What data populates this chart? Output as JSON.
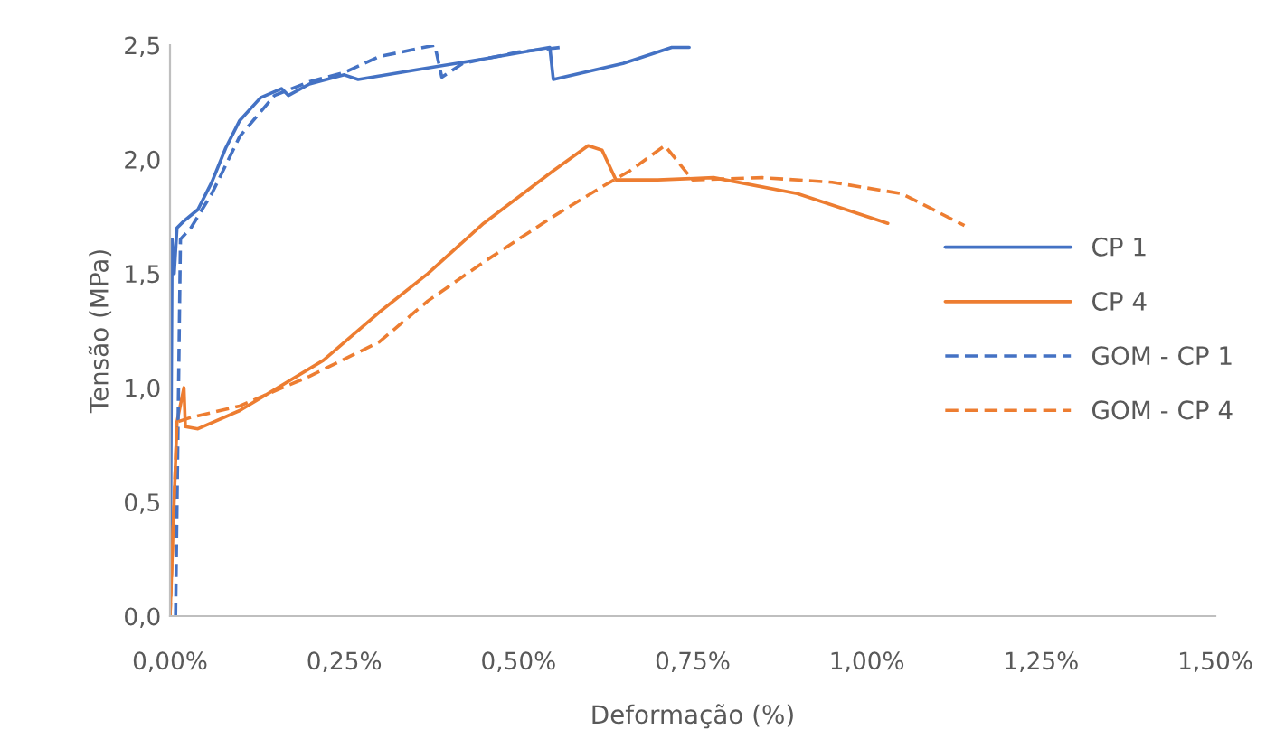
{
  "chart_data": {
    "type": "line",
    "xlabel": "Deformação (%)",
    "ylabel": "Tensão (MPa)",
    "xlim": [
      0,
      1.5
    ],
    "ylim": [
      0,
      2.5
    ],
    "xticks": [
      {
        "value": 0,
        "label": "0,00%"
      },
      {
        "value": 0.25,
        "label": "0,25%"
      },
      {
        "value": 0.5,
        "label": "0,50%"
      },
      {
        "value": 0.75,
        "label": "0,75%"
      },
      {
        "value": 1.0,
        "label": "1,00%"
      },
      {
        "value": 1.25,
        "label": "1,25%"
      },
      {
        "value": 1.5,
        "label": "1,50%"
      }
    ],
    "yticks": [
      {
        "value": 0,
        "label": "0,0"
      },
      {
        "value": 0.5,
        "label": "0,5"
      },
      {
        "value": 1.0,
        "label": "1,0"
      },
      {
        "value": 1.5,
        "label": "1,5"
      },
      {
        "value": 2.0,
        "label": "2,0"
      },
      {
        "value": 2.5,
        "label": "2,5"
      }
    ],
    "grid": false,
    "legend": "right",
    "series": [
      {
        "name": "CP 1",
        "color": "#4472c4",
        "line_style": "solid",
        "x": [
          0,
          0.003,
          0.006,
          0.01,
          0.02,
          0.04,
          0.06,
          0.08,
          0.1,
          0.13,
          0.16,
          0.17,
          0.2,
          0.25,
          0.27,
          0.35,
          0.45,
          0.545,
          0.55,
          0.65,
          0.72,
          0.745
        ],
        "values": [
          0,
          1.65,
          1.5,
          1.7,
          1.73,
          1.78,
          1.9,
          2.05,
          2.17,
          2.27,
          2.31,
          2.28,
          2.33,
          2.37,
          2.35,
          2.39,
          2.44,
          2.49,
          2.35,
          2.42,
          2.49,
          2.49
        ]
      },
      {
        "name": "CP 4",
        "color": "#ed7d31",
        "line_style": "solid",
        "x": [
          0,
          0.01,
          0.02,
          0.022,
          0.04,
          0.1,
          0.22,
          0.3,
          0.37,
          0.45,
          0.55,
          0.6,
          0.62,
          0.64,
          0.7,
          0.78,
          0.9,
          1.03
        ],
        "values": [
          0,
          0.85,
          1.0,
          0.83,
          0.82,
          0.9,
          1.12,
          1.33,
          1.5,
          1.72,
          1.95,
          2.06,
          2.04,
          1.91,
          1.91,
          1.92,
          1.85,
          1.72
        ]
      },
      {
        "name": "GOM - CP 1",
        "color": "#4472c4",
        "line_style": "dashed",
        "x": [
          0.008,
          0.015,
          0.03,
          0.06,
          0.1,
          0.15,
          0.2,
          0.25,
          0.3,
          0.38,
          0.39,
          0.42,
          0.5,
          0.56
        ],
        "values": [
          0,
          1.65,
          1.7,
          1.85,
          2.1,
          2.28,
          2.34,
          2.38,
          2.45,
          2.5,
          2.36,
          2.42,
          2.47,
          2.49
        ]
      },
      {
        "name": "GOM - CP 4",
        "color": "#ed7d31",
        "line_style": "dashed",
        "x": [
          0,
          0.01,
          0.03,
          0.1,
          0.2,
          0.3,
          0.37,
          0.45,
          0.55,
          0.62,
          0.66,
          0.71,
          0.75,
          0.85,
          0.95,
          1.05,
          1.14
        ],
        "values": [
          0,
          0.85,
          0.87,
          0.92,
          1.05,
          1.2,
          1.38,
          1.55,
          1.75,
          1.88,
          1.95,
          2.06,
          1.91,
          1.92,
          1.9,
          1.85,
          1.71
        ]
      }
    ]
  }
}
